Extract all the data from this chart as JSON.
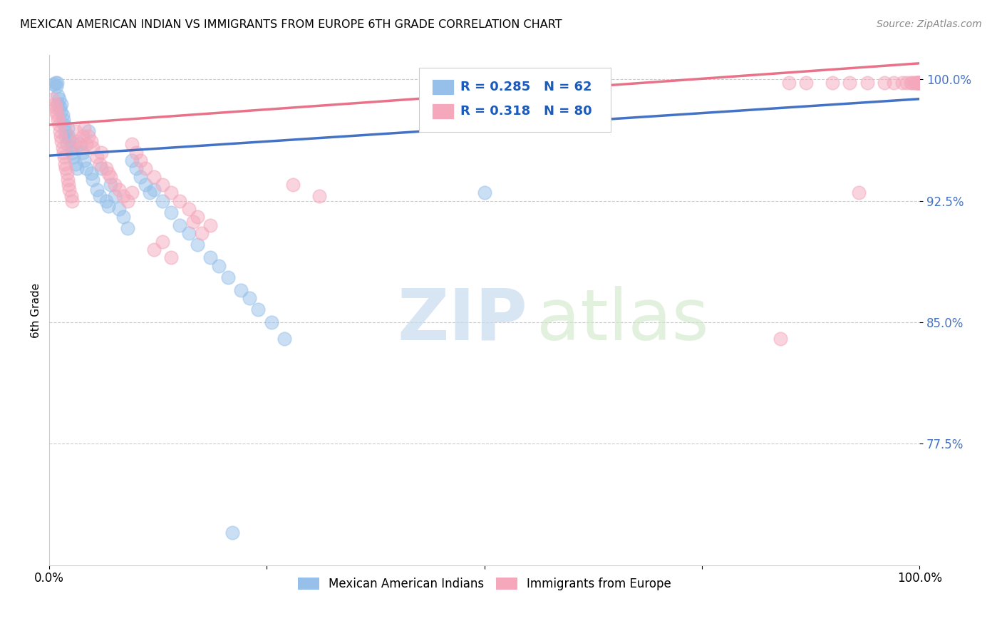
{
  "title": "MEXICAN AMERICAN INDIAN VS IMMIGRANTS FROM EUROPE 6TH GRADE CORRELATION CHART",
  "source": "Source: ZipAtlas.com",
  "ylabel": "6th Grade",
  "xlim": [
    0.0,
    1.0
  ],
  "ylim": [
    0.7,
    1.015
  ],
  "yticks": [
    0.775,
    0.85,
    0.925,
    1.0
  ],
  "ytick_labels": [
    "77.5%",
    "85.0%",
    "92.5%",
    "100.0%"
  ],
  "blue_R": 0.285,
  "blue_N": 62,
  "pink_R": 0.318,
  "pink_N": 80,
  "blue_color": "#96C0EA",
  "pink_color": "#F5A8BC",
  "blue_line_color": "#4472C4",
  "pink_line_color": "#E8728A",
  "legend_label_blue": "Mexican American Indians",
  "legend_label_pink": "Immigrants from Europe",
  "watermark_zip": "ZIP",
  "watermark_atlas": "atlas",
  "blue_x": [
    0.005,
    0.007,
    0.008,
    0.009,
    0.01,
    0.01,
    0.011,
    0.012,
    0.013,
    0.014,
    0.015,
    0.016,
    0.017,
    0.018,
    0.019,
    0.02,
    0.021,
    0.022,
    0.023,
    0.025,
    0.026,
    0.028,
    0.03,
    0.032,
    0.035,
    0.038,
    0.04,
    0.042,
    0.045,
    0.048,
    0.05,
    0.055,
    0.058,
    0.06,
    0.065,
    0.068,
    0.07,
    0.075,
    0.08,
    0.085,
    0.09,
    0.095,
    0.1,
    0.105,
    0.11,
    0.115,
    0.12,
    0.13,
    0.14,
    0.15,
    0.16,
    0.17,
    0.185,
    0.195,
    0.205,
    0.22,
    0.23,
    0.24,
    0.255,
    0.27,
    0.5,
    0.21
  ],
  "blue_y": [
    0.997,
    0.998,
    0.996,
    0.998,
    0.99,
    0.985,
    0.988,
    0.983,
    0.98,
    0.985,
    0.978,
    0.975,
    0.972,
    0.968,
    0.965,
    0.96,
    0.97,
    0.965,
    0.963,
    0.958,
    0.955,
    0.952,
    0.948,
    0.945,
    0.96,
    0.955,
    0.95,
    0.945,
    0.968,
    0.942,
    0.938,
    0.932,
    0.928,
    0.945,
    0.925,
    0.922,
    0.935,
    0.928,
    0.92,
    0.915,
    0.908,
    0.95,
    0.945,
    0.94,
    0.935,
    0.93,
    0.932,
    0.925,
    0.918,
    0.91,
    0.905,
    0.898,
    0.89,
    0.885,
    0.878,
    0.87,
    0.865,
    0.858,
    0.85,
    0.84,
    0.93,
    0.72
  ],
  "pink_x": [
    0.004,
    0.006,
    0.007,
    0.008,
    0.009,
    0.01,
    0.011,
    0.012,
    0.013,
    0.014,
    0.015,
    0.016,
    0.017,
    0.018,
    0.019,
    0.02,
    0.021,
    0.022,
    0.023,
    0.025,
    0.026,
    0.028,
    0.03,
    0.032,
    0.035,
    0.038,
    0.04,
    0.042,
    0.045,
    0.048,
    0.05,
    0.055,
    0.058,
    0.06,
    0.065,
    0.068,
    0.07,
    0.075,
    0.08,
    0.085,
    0.09,
    0.095,
    0.1,
    0.105,
    0.11,
    0.12,
    0.13,
    0.14,
    0.15,
    0.16,
    0.17,
    0.185,
    0.28,
    0.31,
    0.095,
    0.165,
    0.175,
    0.13,
    0.12,
    0.14,
    0.85,
    0.87,
    0.9,
    0.92,
    0.94,
    0.96,
    0.97,
    0.98,
    0.985,
    0.99,
    0.992,
    0.995,
    0.997,
    0.999,
    0.999,
    0.999,
    0.998,
    0.997,
    0.84,
    0.93
  ],
  "pink_y": [
    0.988,
    0.985,
    0.983,
    0.98,
    0.978,
    0.975,
    0.972,
    0.968,
    0.965,
    0.962,
    0.958,
    0.955,
    0.952,
    0.948,
    0.945,
    0.942,
    0.938,
    0.935,
    0.932,
    0.928,
    0.925,
    0.96,
    0.968,
    0.962,
    0.958,
    0.965,
    0.97,
    0.96,
    0.965,
    0.962,
    0.958,
    0.952,
    0.948,
    0.955,
    0.945,
    0.942,
    0.94,
    0.935,
    0.932,
    0.928,
    0.925,
    0.96,
    0.955,
    0.95,
    0.945,
    0.94,
    0.935,
    0.93,
    0.925,
    0.92,
    0.915,
    0.91,
    0.935,
    0.928,
    0.93,
    0.912,
    0.905,
    0.9,
    0.895,
    0.89,
    0.998,
    0.998,
    0.998,
    0.998,
    0.998,
    0.998,
    0.998,
    0.998,
    0.998,
    0.998,
    0.998,
    0.998,
    0.998,
    0.998,
    0.998,
    0.998,
    0.998,
    0.998,
    0.84,
    0.93
  ],
  "blue_trend_x": [
    0.0,
    1.0
  ],
  "blue_trend_y": [
    0.953,
    0.988
  ],
  "pink_trend_x": [
    0.0,
    1.0
  ],
  "pink_trend_y": [
    0.972,
    1.01
  ]
}
